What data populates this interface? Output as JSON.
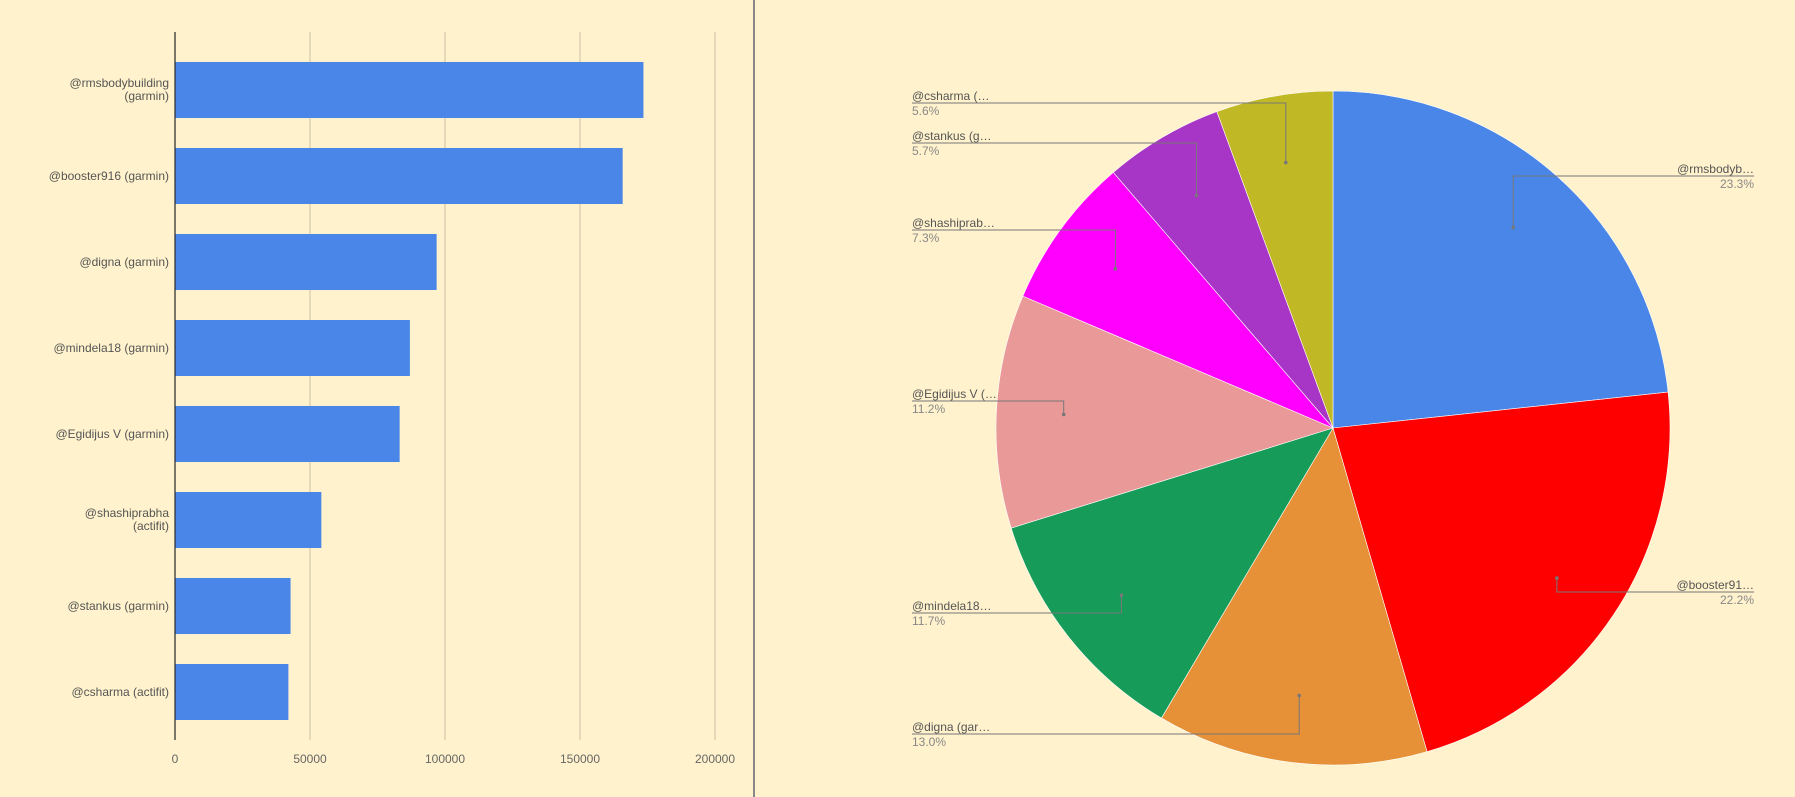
{
  "chart_data": [
    {
      "type": "bar",
      "orientation": "horizontal",
      "categories": [
        "@rmsbodybuilding (garmin)",
        "@booster916 (garmin)",
        "@digna (garmin)",
        "@mindela18 (garmin)",
        "@Egidijus V (garmin)",
        "@shashiprabha (actifit)",
        "@stankus (garmin)",
        "@csharma (actifit)"
      ],
      "values": [
        173500,
        165800,
        96900,
        87000,
        83200,
        54200,
        42800,
        42000
      ],
      "xlim": [
        0,
        200000
      ],
      "xticks": [
        "0",
        "50000",
        "100000",
        "150000",
        "200000"
      ],
      "grid": true,
      "bar_color": "#4a86e8"
    },
    {
      "type": "pie",
      "slices": [
        {
          "label": "@rmsbodyb…",
          "percent_label": "23.3%",
          "value": 23.3,
          "color": "#4a86e8"
        },
        {
          "label": "@booster91…",
          "percent_label": "22.2%",
          "value": 22.2,
          "color": "#ff0000"
        },
        {
          "label": "@digna (gar…",
          "percent_label": "13.0%",
          "value": 13.0,
          "color": "#e69138"
        },
        {
          "label": "@mindela18…",
          "percent_label": "11.7%",
          "value": 11.7,
          "color": "#169b58"
        },
        {
          "label": "@Egidijus V (…",
          "percent_label": "11.2%",
          "value": 11.2,
          "color": "#ea9999"
        },
        {
          "label": "@shashiprab…",
          "percent_label": "7.3%",
          "value": 7.3,
          "color": "#ff00ff"
        },
        {
          "label": "@stankus (g…",
          "percent_label": "5.7%",
          "value": 5.7,
          "color": "#a735c5"
        },
        {
          "label": "@csharma (…",
          "percent_label": "5.6%",
          "value": 5.6,
          "color": "#c1b826"
        }
      ]
    }
  ]
}
